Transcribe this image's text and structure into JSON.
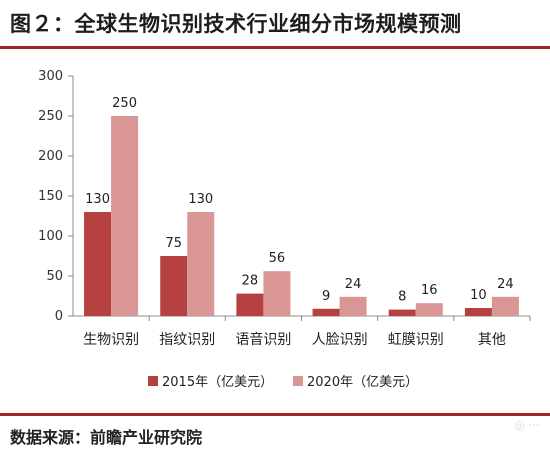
{
  "header": {
    "title": "图２：全球生物识别技术行业细分市场规模预测"
  },
  "footer": {
    "source": "数据来源：前瞻产业研究院"
  },
  "chart_data": {
    "type": "bar",
    "title": "",
    "xlabel": "",
    "ylabel": "",
    "categories": [
      "生物识别",
      "指纹识别",
      "语音识别",
      "人脸识别",
      "虹膜识别",
      "其他"
    ],
    "series": [
      {
        "name": "2015年（亿美元）",
        "values": [
          130,
          75,
          28,
          9,
          8,
          10
        ],
        "color": "#b5403f"
      },
      {
        "name": "2020年（亿美元）",
        "values": [
          250,
          130,
          56,
          24,
          16,
          24
        ],
        "color": "#d99694"
      }
    ],
    "yticks": [
      0,
      50,
      100,
      150,
      200,
      250,
      300
    ],
    "ylim": [
      0,
      300
    ],
    "grid": false,
    "legend_position": "bottom",
    "data_labels": true
  }
}
